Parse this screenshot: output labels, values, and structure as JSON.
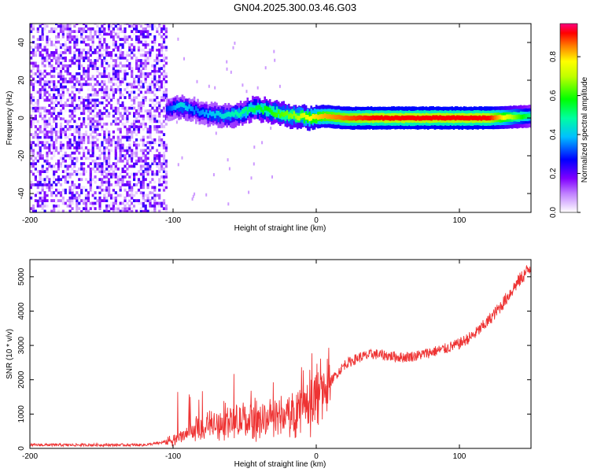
{
  "title": "GN04.2025.300.03.46.G03",
  "chart_data": [
    {
      "type": "heatmap",
      "xlabel": "Height of straight line (km)",
      "ylabel": "Frequency (Hz)",
      "xlim": [
        -200,
        150
      ],
      "ylim": [
        -50,
        50
      ],
      "xticks": [
        -200,
        -100,
        0,
        100
      ],
      "yticks": [
        -40,
        -20,
        0,
        20,
        40
      ],
      "colorbar": {
        "label": "Normalized spectral amplitude",
        "range": [
          0,
          0.97
        ],
        "ticks": [
          0.0,
          0.2,
          0.4,
          0.6,
          0.8
        ],
        "colors": [
          "#ffffff",
          "#8000ff",
          "#0000ff",
          "#00ffff",
          "#00ff00",
          "#ffff00",
          "#ff0000",
          "#ff0080"
        ]
      },
      "ridge": {
        "x": [
          -105,
          -95,
          -85,
          -75,
          -65,
          -55,
          -45,
          -35,
          -25,
          -15,
          -5,
          5,
          20,
          40,
          60,
          80,
          100,
          120,
          150
        ],
        "frequency": [
          5,
          6,
          4,
          2,
          1,
          2,
          5,
          4,
          2,
          1,
          0,
          1,
          0,
          0,
          0,
          0,
          0,
          0,
          1
        ],
        "amplitude": [
          0.3,
          0.45,
          0.35,
          0.4,
          0.45,
          0.5,
          0.55,
          0.6,
          0.65,
          0.7,
          0.8,
          0.85,
          0.9,
          0.95,
          0.95,
          0.95,
          0.95,
          0.95,
          0.5
        ]
      },
      "noise_region": {
        "x": [
          -200,
          -105
        ],
        "amplitude": [
          0.0,
          0.25
        ]
      }
    },
    {
      "type": "line",
      "xlabel": "Height of straight line (km)",
      "ylabel": "SNR (10 * v/v)",
      "xlim": [
        -200,
        150
      ],
      "ylim": [
        0,
        5500
      ],
      "xticks": [
        -200,
        -100,
        0,
        100
      ],
      "yticks": [
        0,
        1000,
        2000,
        3000,
        4000,
        5000
      ],
      "color": "#ee3333",
      "x": [
        -200,
        -180,
        -160,
        -140,
        -120,
        -110,
        -100,
        -90,
        -80,
        -70,
        -60,
        -50,
        -40,
        -30,
        -20,
        -10,
        0,
        10,
        20,
        30,
        40,
        50,
        60,
        70,
        80,
        90,
        100,
        110,
        120,
        130,
        140,
        150
      ],
      "y": [
        100,
        100,
        100,
        100,
        100,
        150,
        250,
        400,
        600,
        700,
        750,
        800,
        850,
        900,
        950,
        1200,
        1500,
        1950,
        2450,
        2650,
        2750,
        2700,
        2650,
        2700,
        2800,
        2900,
        3050,
        3300,
        3700,
        4200,
        4800,
        5300
      ]
    }
  ]
}
